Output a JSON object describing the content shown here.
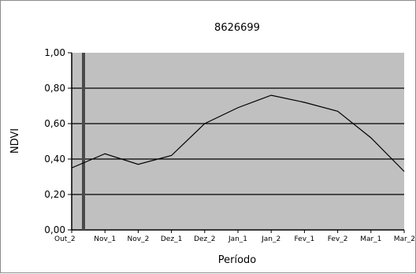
{
  "chart_data": {
    "type": "line",
    "title": "8626699",
    "xlabel": "Período",
    "ylabel": "NDVI",
    "categories": [
      "Out_2",
      "Nov_1",
      "Nov_2",
      "Dez_1",
      "Dez_2",
      "Jan_1",
      "Jan_2",
      "Fev_1",
      "Fev_2",
      "Mar_1",
      "Mar_2"
    ],
    "y_tick_labels": [
      "0,00",
      "0,20",
      "0,40",
      "0,60",
      "0,80",
      "1,00"
    ],
    "ylim": [
      0,
      1
    ],
    "grid": true,
    "legend": "none",
    "series": [
      {
        "values": [
          0.35,
          0.43,
          0.37,
          0.42,
          0.6,
          0.69,
          0.76,
          0.72,
          0.67,
          0.52,
          0.33
        ]
      }
    ],
    "colors": {
      "plot_background": "#c0c0c0",
      "line": "#000000",
      "gridline": "#000000"
    }
  }
}
